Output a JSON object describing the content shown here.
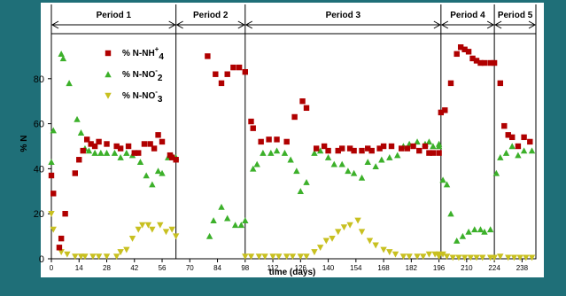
{
  "chart_data": {
    "type": "scatter",
    "title": "",
    "xlabel": "time (days)",
    "ylabel": "% N",
    "xlim": [
      0,
      245
    ],
    "ylim": [
      0,
      100
    ],
    "grid": false,
    "x_ticks": [
      0,
      14,
      28,
      42,
      56,
      70,
      84,
      98,
      112,
      126,
      140,
      154,
      168,
      182,
      196,
      210,
      224,
      238
    ],
    "y_ticks": [
      0,
      20,
      40,
      60,
      80
    ],
    "legend_position": "top-left",
    "periods": [
      {
        "name": "Period 1",
        "start": 0,
        "end": 63
      },
      {
        "name": "Period 2",
        "start": 63,
        "end": 98
      },
      {
        "name": "Period 3",
        "start": 98,
        "end": 197
      },
      {
        "name": "Period 4",
        "start": 197,
        "end": 224
      },
      {
        "name": "Period 5",
        "start": 224,
        "end": 245
      }
    ],
    "legend": [
      {
        "base": "% N-NH",
        "sup": "+",
        "sub": "4"
      },
      {
        "base": "% N-NO",
        "sup": "-",
        "sub": "2"
      },
      {
        "base": "% N-NO",
        "sup": "-",
        "sub": "3"
      }
    ],
    "series": [
      {
        "name": "% N-NH+4",
        "color": "#b00000",
        "marker": "square",
        "points": [
          [
            0,
            37
          ],
          [
            1,
            29
          ],
          [
            4,
            5
          ],
          [
            5,
            9
          ],
          [
            7,
            20
          ],
          [
            12,
            38
          ],
          [
            14,
            44
          ],
          [
            16,
            48
          ],
          [
            18,
            53
          ],
          [
            20,
            51
          ],
          [
            22,
            50
          ],
          [
            24,
            52
          ],
          [
            28,
            51
          ],
          [
            33,
            50
          ],
          [
            35,
            49
          ],
          [
            39,
            50
          ],
          [
            42,
            47
          ],
          [
            44,
            47
          ],
          [
            47,
            51
          ],
          [
            50,
            51
          ],
          [
            52,
            49
          ],
          [
            54,
            55
          ],
          [
            56,
            52
          ],
          [
            60,
            46
          ],
          [
            61,
            45
          ],
          [
            63,
            44
          ],
          [
            79,
            90
          ],
          [
            83,
            82
          ],
          [
            86,
            78
          ],
          [
            89,
            82
          ],
          [
            92,
            85
          ],
          [
            95,
            85
          ],
          [
            98,
            83
          ],
          [
            101,
            61
          ],
          [
            102,
            58
          ],
          [
            106,
            52
          ],
          [
            110,
            53
          ],
          [
            114,
            53
          ],
          [
            119,
            52
          ],
          [
            123,
            63
          ],
          [
            127,
            70
          ],
          [
            129,
            67
          ],
          [
            134,
            49
          ],
          [
            138,
            50
          ],
          [
            140,
            48
          ],
          [
            145,
            48
          ],
          [
            147,
            49
          ],
          [
            151,
            49
          ],
          [
            153,
            48
          ],
          [
            157,
            48
          ],
          [
            160,
            49
          ],
          [
            162,
            48
          ],
          [
            166,
            49
          ],
          [
            168,
            50
          ],
          [
            172,
            50
          ],
          [
            177,
            49
          ],
          [
            180,
            49
          ],
          [
            183,
            50
          ],
          [
            186,
            48
          ],
          [
            189,
            50
          ],
          [
            191,
            47
          ],
          [
            193,
            47
          ],
          [
            196,
            47
          ],
          [
            197,
            65
          ],
          [
            199,
            66
          ],
          [
            202,
            78
          ],
          [
            205,
            91
          ],
          [
            207,
            94
          ],
          [
            209,
            93
          ],
          [
            211,
            92
          ],
          [
            213,
            89
          ],
          [
            215,
            88
          ],
          [
            217,
            87
          ],
          [
            219,
            87
          ],
          [
            222,
            87
          ],
          [
            224,
            87
          ],
          [
            227,
            78
          ],
          [
            229,
            59
          ],
          [
            231,
            55
          ],
          [
            233,
            54
          ],
          [
            236,
            50
          ],
          [
            239,
            54
          ],
          [
            242,
            52
          ]
        ]
      },
      {
        "name": "% N-NO-2",
        "color": "#3cb02a",
        "marker": "triangle-up",
        "points": [
          [
            0,
            43
          ],
          [
            1,
            57
          ],
          [
            5,
            91
          ],
          [
            6,
            89
          ],
          [
            9,
            78
          ],
          [
            13,
            62
          ],
          [
            15,
            56
          ],
          [
            17,
            49
          ],
          [
            19,
            48
          ],
          [
            22,
            47
          ],
          [
            25,
            47
          ],
          [
            28,
            47
          ],
          [
            32,
            47
          ],
          [
            35,
            45
          ],
          [
            38,
            47
          ],
          [
            41,
            46
          ],
          [
            45,
            43
          ],
          [
            48,
            37
          ],
          [
            51,
            33
          ],
          [
            54,
            39
          ],
          [
            56,
            38
          ],
          [
            59,
            45
          ],
          [
            61,
            46
          ],
          [
            63,
            45
          ],
          [
            80,
            10
          ],
          [
            82,
            17
          ],
          [
            86,
            23
          ],
          [
            89,
            18
          ],
          [
            93,
            15
          ],
          [
            96,
            15
          ],
          [
            98,
            17
          ],
          [
            102,
            40
          ],
          [
            104,
            42
          ],
          [
            107,
            47
          ],
          [
            111,
            47
          ],
          [
            114,
            48
          ],
          [
            118,
            47
          ],
          [
            121,
            44
          ],
          [
            124,
            39
          ],
          [
            126,
            30
          ],
          [
            129,
            34
          ],
          [
            133,
            47
          ],
          [
            136,
            48
          ],
          [
            140,
            45
          ],
          [
            143,
            42
          ],
          [
            147,
            42
          ],
          [
            150,
            39
          ],
          [
            153,
            38
          ],
          [
            157,
            36
          ],
          [
            160,
            43
          ],
          [
            164,
            41
          ],
          [
            167,
            44
          ],
          [
            171,
            45
          ],
          [
            175,
            46
          ],
          [
            178,
            50
          ],
          [
            181,
            51
          ],
          [
            185,
            52
          ],
          [
            189,
            51
          ],
          [
            191,
            52
          ],
          [
            193,
            50
          ],
          [
            196,
            51
          ],
          [
            196,
            50
          ],
          [
            198,
            35
          ],
          [
            200,
            33
          ],
          [
            202,
            20
          ],
          [
            205,
            8
          ],
          [
            208,
            10
          ],
          [
            211,
            12
          ],
          [
            214,
            13
          ],
          [
            217,
            13
          ],
          [
            219,
            12
          ],
          [
            222,
            13
          ],
          [
            225,
            38
          ],
          [
            227,
            45
          ],
          [
            230,
            47
          ],
          [
            233,
            50
          ],
          [
            236,
            46
          ],
          [
            239,
            48
          ],
          [
            243,
            48
          ]
        ]
      },
      {
        "name": "% N-NO-3",
        "color": "#c8c020",
        "marker": "triangle-down",
        "points": [
          [
            0,
            20
          ],
          [
            1,
            13
          ],
          [
            5,
            3
          ],
          [
            8,
            2
          ],
          [
            12,
            1
          ],
          [
            15,
            1
          ],
          [
            17,
            1
          ],
          [
            21,
            1
          ],
          [
            24,
            1
          ],
          [
            28,
            1
          ],
          [
            33,
            1
          ],
          [
            35,
            3
          ],
          [
            38,
            4
          ],
          [
            41,
            9
          ],
          [
            44,
            13
          ],
          [
            46,
            15
          ],
          [
            49,
            15
          ],
          [
            51,
            13
          ],
          [
            55,
            15
          ],
          [
            58,
            12
          ],
          [
            61,
            13
          ],
          [
            63,
            10
          ],
          [
            98,
            1
          ],
          [
            101,
            1
          ],
          [
            105,
            1
          ],
          [
            108,
            1
          ],
          [
            112,
            1
          ],
          [
            115,
            1
          ],
          [
            119,
            1
          ],
          [
            122,
            1
          ],
          [
            126,
            1
          ],
          [
            129,
            1
          ],
          [
            133,
            3
          ],
          [
            136,
            5
          ],
          [
            139,
            8
          ],
          [
            142,
            9
          ],
          [
            145,
            12
          ],
          [
            148,
            14
          ],
          [
            151,
            15
          ],
          [
            155,
            17
          ],
          [
            157,
            12
          ],
          [
            161,
            8
          ],
          [
            164,
            6
          ],
          [
            168,
            4
          ],
          [
            171,
            3
          ],
          [
            174,
            2
          ],
          [
            178,
            1
          ],
          [
            181,
            1
          ],
          [
            185,
            1
          ],
          [
            188,
            1
          ],
          [
            191,
            2
          ],
          [
            194,
            2
          ],
          [
            196,
            1
          ],
          [
            196,
            2
          ],
          [
            198,
            2
          ],
          [
            200,
            1
          ],
          [
            203,
            0.5
          ],
          [
            206,
            0.5
          ],
          [
            209,
            0.5
          ],
          [
            212,
            0.5
          ],
          [
            215,
            0.5
          ],
          [
            218,
            0.5
          ],
          [
            222,
            0.5
          ],
          [
            224,
            0.5
          ],
          [
            227,
            1
          ],
          [
            231,
            0.5
          ],
          [
            234,
            0.5
          ],
          [
            237,
            0.5
          ],
          [
            240,
            0.5
          ],
          [
            243,
            0.5
          ]
        ]
      }
    ],
    "colors": {
      "background": "#1f6f78",
      "plot_bg": "#ffffff",
      "axis": "#000000"
    }
  }
}
